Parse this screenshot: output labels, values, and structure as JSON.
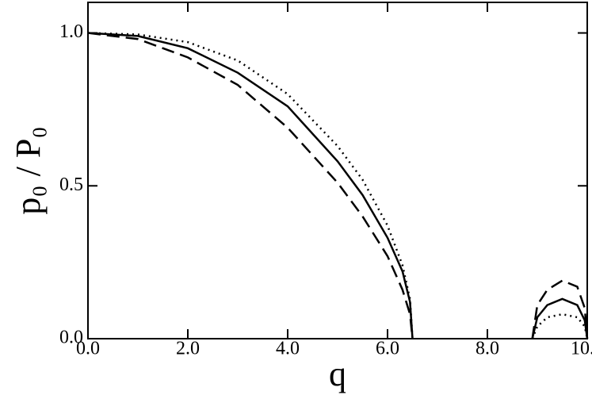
{
  "chart_data": {
    "type": "line",
    "xlabel": "q",
    "ylabel": "p₀ / P₀",
    "xlim": [
      0,
      10
    ],
    "ylim": [
      0,
      1.1
    ],
    "xticks": [
      {
        "value": 0,
        "label": "0.0"
      },
      {
        "value": 2,
        "label": "2.0"
      },
      {
        "value": 4,
        "label": "4.0"
      },
      {
        "value": 6,
        "label": "6.0"
      },
      {
        "value": 8,
        "label": "8.0"
      },
      {
        "value": 10,
        "label": "10.0"
      }
    ],
    "yticks": [
      {
        "value": 0,
        "label": "0.0"
      },
      {
        "value": 0.5,
        "label": "0.5"
      },
      {
        "value": 1,
        "label": "1.0"
      }
    ],
    "x": [
      0,
      1,
      2,
      3,
      4,
      5,
      5.5,
      6,
      6.3,
      6.45,
      6.5,
      7,
      8.9,
      9.0,
      9.2,
      9.5,
      9.8,
      9.95,
      10
    ],
    "series": [
      {
        "color": "#000000",
        "dash": "solid",
        "values": [
          1.0,
          0.99,
          0.95,
          0.87,
          0.76,
          0.58,
          0.47,
          0.33,
          0.22,
          0.12,
          0.0,
          null,
          0.0,
          0.07,
          0.11,
          0.13,
          0.11,
          0.06,
          0.0
        ]
      },
      {
        "color": "#000000",
        "dash": "dashed",
        "values": [
          1.0,
          0.98,
          0.92,
          0.83,
          0.69,
          0.51,
          0.4,
          0.27,
          0.16,
          0.08,
          0.0,
          null,
          0.0,
          0.11,
          0.16,
          0.19,
          0.17,
          0.1,
          0.0
        ]
      },
      {
        "color": "#000000",
        "dash": "dotted",
        "values": [
          1.0,
          0.995,
          0.97,
          0.91,
          0.8,
          0.63,
          0.52,
          0.37,
          0.24,
          0.13,
          0.0,
          null,
          0.0,
          0.04,
          0.07,
          0.08,
          0.07,
          0.04,
          0.0
        ]
      }
    ]
  }
}
